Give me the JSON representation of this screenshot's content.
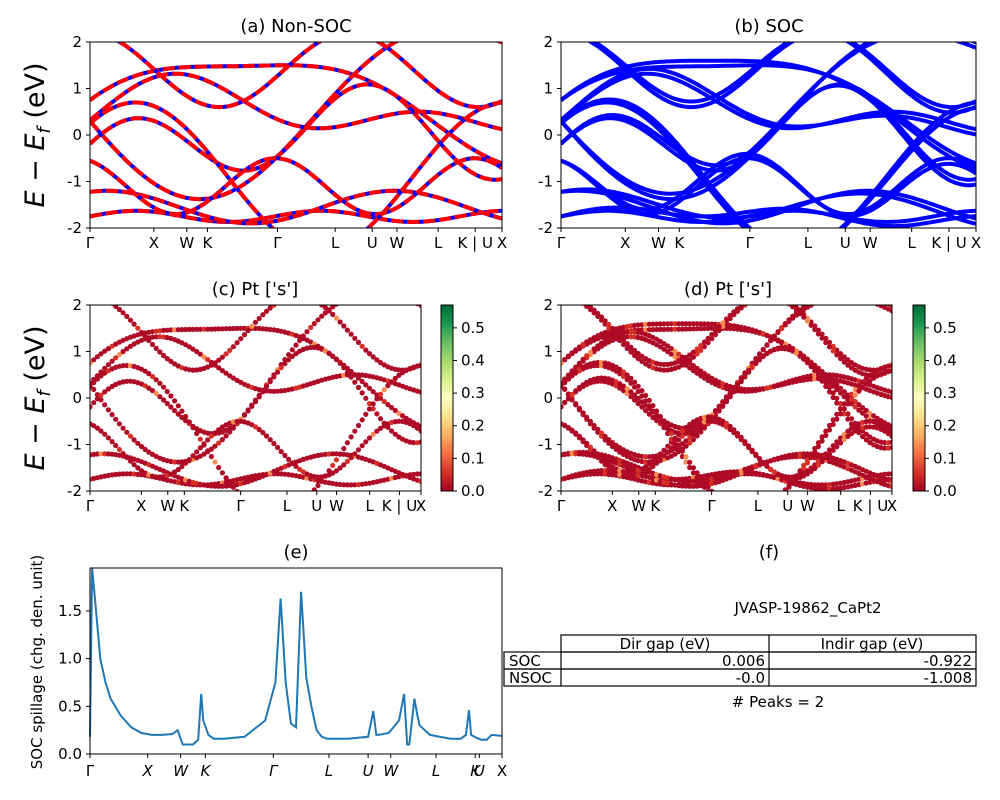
{
  "colors": {
    "nonsoc_red": "#ff0000",
    "nonsoc_blue": "#0000ff",
    "soc_blue": "#0000ff",
    "spillage_line": "#1f77b4"
  },
  "panels": {
    "a": {
      "title": "(a) Non-SOC"
    },
    "b": {
      "title": "(b) SOC"
    },
    "c": {
      "title": "(c)  Pt ['s']"
    },
    "d": {
      "title": "(d) Pt ['s']"
    },
    "e": {
      "title": "(e)"
    },
    "f": {
      "title": "(f)"
    }
  },
  "band_ylabel": "E − E_f (eV)",
  "kpath_labels": [
    "Γ",
    "X",
    "W",
    "K",
    "Γ",
    "L",
    "U",
    "W",
    "L",
    "K | U",
    "X"
  ],
  "colorbar": {
    "ticks": [
      "0.0",
      "0.1",
      "0.2",
      "0.3",
      "0.4",
      "0.5"
    ],
    "colormap": "RdYlGn",
    "range": [
      0,
      0.57
    ]
  },
  "info": {
    "material": "JVASP-19862_CaPt2",
    "table": {
      "headers": [
        "",
        "Dir gap (eV)",
        "Indir gap (eV)"
      ],
      "rows": [
        [
          "SOC",
          "0.006",
          "-0.922"
        ],
        [
          "NSOC",
          "-0.0",
          "-1.008"
        ]
      ]
    },
    "peaks": "# Peaks = 2"
  },
  "chart_data": [
    {
      "type": "line",
      "panel": "a",
      "title": "(a) Non-SOC",
      "ylabel": "E − E_f (eV)",
      "ylim": [
        -2,
        2
      ],
      "yticks": [
        -2,
        -1,
        0,
        1,
        2
      ],
      "xtick_labels": [
        "Γ",
        "X",
        "W",
        "K",
        "Γ",
        "L",
        "U",
        "W",
        "L",
        "K | U",
        "X"
      ],
      "series": [
        {
          "name": "",
          "color": "red dashed over blue"
        }
      ]
    },
    {
      "type": "line",
      "panel": "b",
      "title": "(b) SOC",
      "ylim": [
        -2,
        2
      ],
      "yticks": [
        -2,
        -1,
        0,
        1,
        2
      ],
      "xtick_labels": [
        "Γ",
        "X",
        "W",
        "K",
        "Γ",
        "L",
        "U",
        "W",
        "L",
        "K | U",
        "X"
      ]
    },
    {
      "type": "scatter",
      "panel": "c",
      "title": "(c)  Pt ['s']",
      "ylabel": "E − E_f (eV)",
      "ylim": [
        -2,
        2
      ],
      "yticks": [
        -2,
        -1,
        0,
        1,
        2
      ],
      "colorbar_range": [
        0,
        0.57
      ]
    },
    {
      "type": "scatter",
      "panel": "d",
      "title": "(d) Pt ['s']",
      "ylim": [
        -2,
        2
      ],
      "yticks": [
        -2,
        -1,
        0,
        1,
        2
      ],
      "colorbar_range": [
        0,
        0.57
      ]
    },
    {
      "type": "line",
      "panel": "e",
      "title": "(e)",
      "ylabel": "SOC spillage (chg. den. unit)",
      "ylim": [
        0,
        1.95
      ],
      "yticks": [
        0,
        0.5,
        1.0,
        1.5
      ],
      "xtick_labels": [
        "Γ",
        "X",
        "W",
        "K",
        "Γ",
        "L",
        "U",
        "W",
        "L",
        "K",
        "U",
        "X"
      ],
      "x": [
        0,
        0.02,
        0.05,
        0.1,
        0.15,
        0.2,
        0.3,
        0.4,
        0.5,
        0.6,
        0.7,
        0.8,
        0.85,
        0.9,
        0.95,
        1.0,
        1.05,
        1.08,
        1.1,
        1.15,
        1.2,
        1.3,
        1.5,
        1.7,
        1.8,
        1.85,
        1.9,
        1.95,
        2.0,
        2.05,
        2.1,
        2.15,
        2.2,
        2.25,
        2.3,
        2.5,
        2.7,
        2.75,
        2.78,
        2.8,
        2.9,
        3.0,
        3.05,
        3.08,
        3.1,
        3.15,
        3.18,
        3.2,
        3.25,
        3.3,
        3.5,
        3.6,
        3.65,
        3.68,
        3.7,
        3.75,
        3.8,
        3.85,
        3.9,
        4.0
      ],
      "y": [
        0.18,
        1.95,
        1.6,
        1.0,
        0.75,
        0.58,
        0.4,
        0.28,
        0.22,
        0.2,
        0.2,
        0.21,
        0.25,
        0.1,
        0.1,
        0.1,
        0.15,
        0.63,
        0.35,
        0.2,
        0.16,
        0.16,
        0.18,
        0.35,
        0.75,
        1.63,
        0.75,
        0.32,
        0.28,
        1.7,
        0.8,
        0.5,
        0.25,
        0.18,
        0.16,
        0.16,
        0.18,
        0.45,
        0.2,
        0.2,
        0.22,
        0.35,
        0.63,
        0.1,
        0.1,
        0.58,
        0.4,
        0.3,
        0.25,
        0.2,
        0.16,
        0.16,
        0.2,
        0.46,
        0.2,
        0.17,
        0.15,
        0.15,
        0.2,
        0.19
      ]
    }
  ]
}
